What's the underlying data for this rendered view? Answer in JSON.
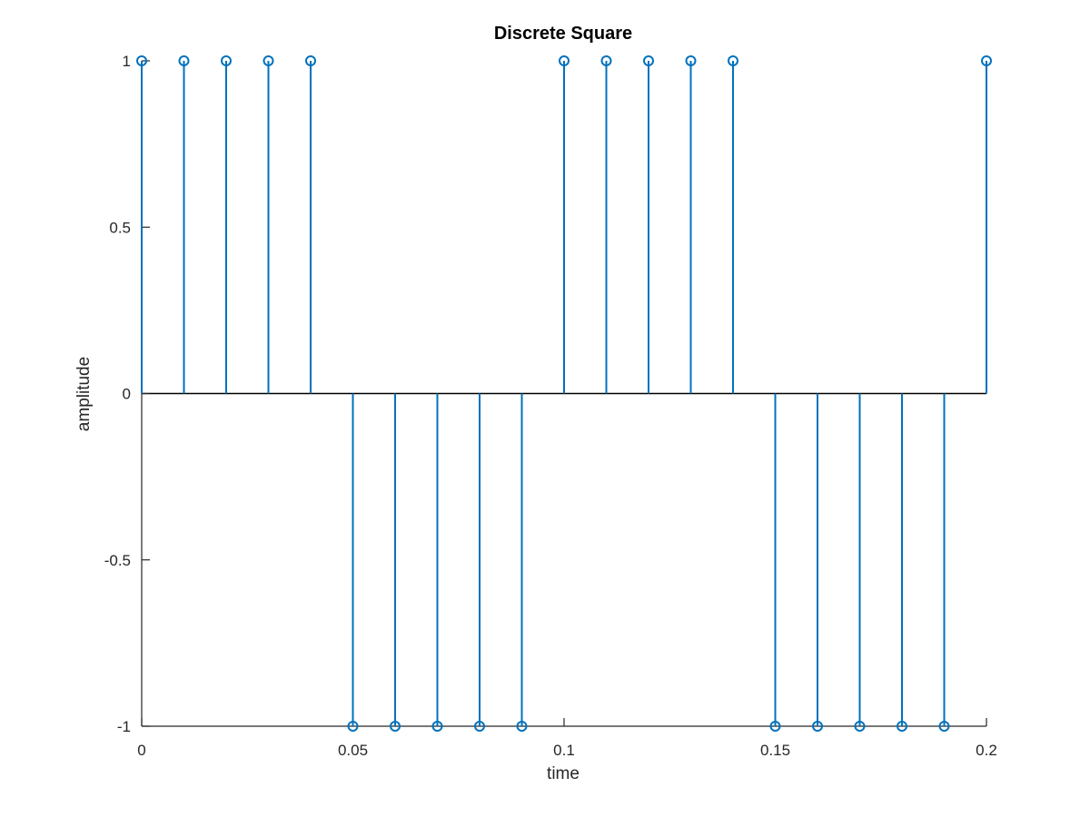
{
  "chart_data": {
    "type": "stem",
    "title": "Discrete Square",
    "xlabel": "time",
    "ylabel": "amplitude",
    "xlim": [
      0,
      0.2
    ],
    "ylim": [
      -1,
      1
    ],
    "xticks": [
      0,
      0.05,
      0.1,
      0.15,
      0.2
    ],
    "xtick_labels": [
      "0",
      "0.05",
      "0.1",
      "0.15",
      "0.2"
    ],
    "yticks": [
      -1,
      -0.5,
      0,
      0.5,
      1
    ],
    "ytick_labels": [
      "-1",
      "-0.5",
      "0",
      "0.5",
      "1"
    ],
    "grid": false,
    "baseline": 0,
    "marker": "circle",
    "series": [
      {
        "color": "#0072bd",
        "x": [
          0,
          0.01,
          0.02,
          0.03,
          0.04,
          0.05,
          0.06,
          0.07,
          0.08,
          0.09,
          0.1,
          0.11,
          0.12,
          0.13,
          0.14,
          0.15,
          0.16,
          0.17,
          0.18,
          0.19,
          0.2
        ],
        "y": [
          1,
          1,
          1,
          1,
          1,
          -1,
          -1,
          -1,
          -1,
          -1,
          1,
          1,
          1,
          1,
          1,
          -1,
          -1,
          -1,
          -1,
          -1,
          1
        ]
      }
    ]
  }
}
